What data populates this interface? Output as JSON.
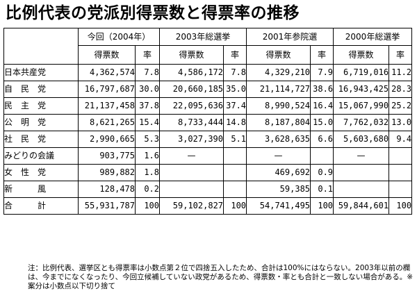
{
  "title": "比例代表の党派別得票数と得票率の推移",
  "column_groups": [
    "今回（2004年）",
    "2003年総選挙",
    "2001年参院選",
    "2000年総選挙"
  ],
  "sub_headers": [
    "得票数",
    "率"
  ],
  "rows": [
    {
      "party": "日本共産党",
      "cells": [
        "4,362,574",
        "7.8",
        "4,586,172",
        "7.8",
        "4,329,210",
        "7.9",
        "6,719,016",
        "11.2"
      ]
    },
    {
      "party": "自　民　党",
      "cells": [
        "16,797,687",
        "30.0",
        "20,660,185",
        "35.0",
        "21,114,727",
        "38.6",
        "16,943,425",
        "28.3"
      ]
    },
    {
      "party": "民　主　党",
      "cells": [
        "21,137,458",
        "37.8",
        "22,095,636",
        "37.4",
        "8,990,524",
        "16.4",
        "15,067,990",
        "25.2"
      ]
    },
    {
      "party": "公　明　党",
      "cells": [
        "8,621,265",
        "15.4",
        "8,733,444",
        "14.8",
        "8,187,804",
        "15.0",
        "7,762,032",
        "13.0"
      ]
    },
    {
      "party": "社　民　党",
      "cells": [
        "2,990,665",
        "5.3",
        "3,027,390",
        "5.1",
        "3,628,635",
        "6.6",
        "5,603,680",
        "9.4"
      ]
    },
    {
      "party": "みどりの会議",
      "cells": [
        "903,775",
        "1.6",
        "—",
        "",
        "—",
        "",
        "—",
        ""
      ]
    },
    {
      "party": "女　性　党",
      "cells": [
        "989,882",
        "1.8",
        "",
        "",
        "469,692",
        "0.9",
        "",
        ""
      ]
    },
    {
      "party": "新　　　風",
      "cells": [
        "128,478",
        "0.2",
        "",
        "",
        "59,385",
        "0.1",
        "",
        ""
      ]
    },
    {
      "party": "合　　　計",
      "cells": [
        "55,931,787",
        "100",
        "59,102,827",
        "100",
        "54,741,495",
        "100",
        "59,844,601",
        "100"
      ]
    }
  ],
  "note_lines": [
    "注：比例代表、選挙区とも得票率は小数点第２位で四捨五入したため、合計は100%にはならない。2003年以前の欄は、今までになくなったり、今回立候補していない政党があるため、得票数・率とも合計と一致しない場合がある。※案分は小数点以下切り捨て"
  ]
}
